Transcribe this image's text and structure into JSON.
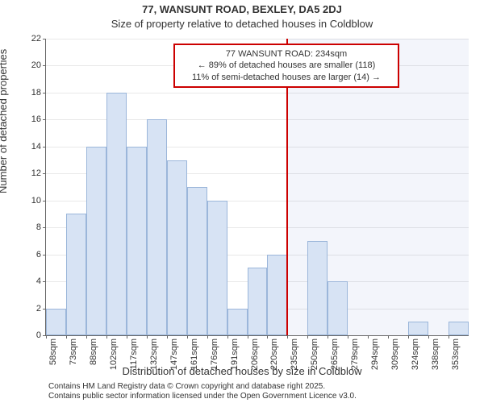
{
  "chart": {
    "type": "histogram",
    "title": "77, WANSUNT ROAD, BEXLEY, DA5 2DJ",
    "subtitle": "Size of property relative to detached houses in Coldblow",
    "ylabel": "Number of detached properties",
    "xlabel": "Distribution of detached houses by size in Coldblow",
    "title_fontsize": 13,
    "subtitle_fontsize": 13,
    "label_fontsize": 13,
    "tick_fontsize": 11,
    "xtick_fontsize": 11,
    "attribution_fontsize": 10,
    "callout_fontsize": 11,
    "background_color": "#ffffff",
    "bar_fill": "#d7e3f4",
    "bar_border": "#9bb6da",
    "grid_color": "#e8e8e8",
    "axis_color": "#666666",
    "text_color": "#333333",
    "ref_line_color": "#cc0000",
    "ref_shade_color": "rgba(80,120,200,0.07)",
    "ylim": [
      0,
      22
    ],
    "yticks": [
      0,
      2,
      4,
      6,
      8,
      10,
      12,
      14,
      16,
      18,
      20,
      22
    ],
    "categories": [
      "58sqm",
      "73sqm",
      "88sqm",
      "102sqm",
      "117sqm",
      "132sqm",
      "147sqm",
      "161sqm",
      "176sqm",
      "191sqm",
      "206sqm",
      "220sqm",
      "235sqm",
      "250sqm",
      "265sqm",
      "279sqm",
      "294sqm",
      "309sqm",
      "324sqm",
      "338sqm",
      "353sqm"
    ],
    "values": [
      2,
      9,
      14,
      18,
      14,
      16,
      13,
      11,
      10,
      2,
      5,
      6,
      0,
      7,
      4,
      0,
      0,
      0,
      1,
      0,
      1
    ],
    "reference_index": 12,
    "callout": {
      "line1": "77 WANSUNT ROAD: 234sqm",
      "line2": "← 89% of detached houses are smaller (118)",
      "line3": "11% of semi-detached houses are larger (14) →"
    },
    "attribution": {
      "line1": "Contains HM Land Registry data © Crown copyright and database right 2025.",
      "line2": "Contains public sector information licensed under the Open Government Licence v3.0."
    }
  }
}
